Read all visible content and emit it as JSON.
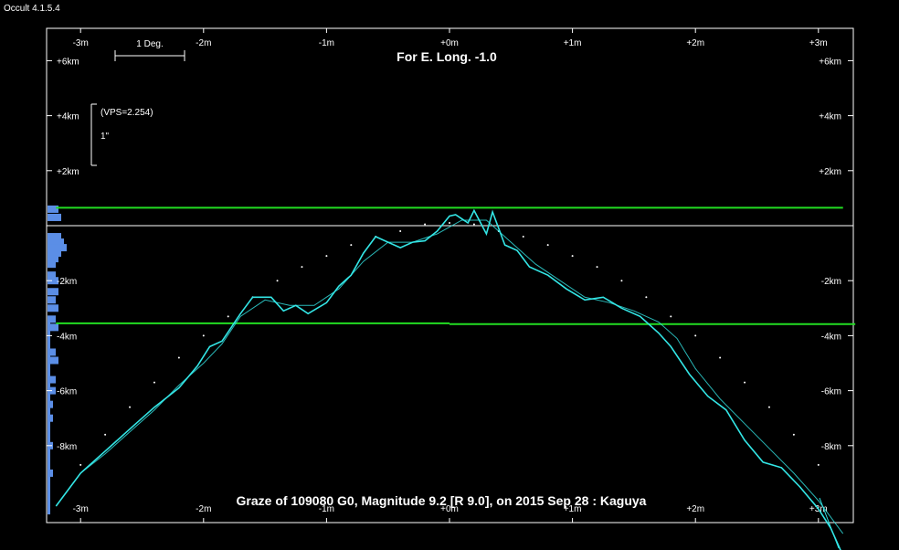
{
  "app_label": "Occult 4.1.5.4",
  "chart_data": {
    "type": "line",
    "title": "For E. Long. -1.0",
    "caption": "Graze of  109080 G0,  Magnitude 9.2 [R 9.0],  on 2015 Sep 28  :  Kaguya",
    "scale_bar_label": "1 Deg.",
    "vps_label": "(VPS=2.254)",
    "vertical_scale_label": "1\"",
    "x_range_min": [
      -3.3,
      3.3
    ],
    "y_range_km": [
      -10.5,
      6.7
    ],
    "x_ticks": [
      -3,
      -2,
      -1,
      0,
      1,
      2,
      3
    ],
    "x_tick_labels_top": [
      "-3m",
      "-2m",
      "-1m",
      "+0m",
      "+1m",
      "+2m",
      "+3m"
    ],
    "x_tick_labels_bottom": [
      "-3m",
      "-2m",
      "-1m",
      "+0m",
      "+1m",
      "+2m",
      "+3m"
    ],
    "y_ticks_km": [
      6,
      4,
      2,
      -2,
      -4,
      -6,
      -8
    ],
    "y_tick_labels": [
      "+6km",
      "+4km",
      "+2km",
      "-2km",
      "-4km",
      "-6km",
      "-8km"
    ],
    "colors": {
      "background": "#000000",
      "frame": "#ffffff",
      "limit_lines": "#22dd22",
      "profile": "#33e6e6",
      "smooth_profile": "#33e6e6",
      "histogram": "#5b8ee6",
      "text": "#ffffff"
    },
    "limit_lines_km": [
      {
        "x_start": -3.2,
        "x_end": 3.2,
        "y": 0.65
      },
      {
        "x_start": -3.2,
        "x_end": 0.0,
        "y": -3.55
      },
      {
        "x_start": 0.0,
        "x_end": 3.3,
        "y": -3.58
      }
    ],
    "profile": {
      "x": [
        -3.2,
        -3.0,
        -2.8,
        -2.6,
        -2.4,
        -2.2,
        -2.05,
        -1.95,
        -1.85,
        -1.7,
        -1.6,
        -1.45,
        -1.35,
        -1.25,
        -1.15,
        -1.0,
        -0.9,
        -0.8,
        -0.7,
        -0.6,
        -0.5,
        -0.4,
        -0.3,
        -0.2,
        -0.1,
        0.0,
        0.05,
        0.15,
        0.2,
        0.3,
        0.35,
        0.45,
        0.55,
        0.65,
        0.8,
        0.95,
        1.1,
        1.25,
        1.4,
        1.55,
        1.7,
        1.8,
        1.95,
        2.1,
        2.25,
        2.4,
        2.55,
        2.7,
        2.85,
        3.0,
        3.1,
        3.2
      ],
      "y": [
        -10.2,
        -9.0,
        -8.2,
        -7.4,
        -6.6,
        -5.9,
        -5.1,
        -4.4,
        -4.2,
        -3.2,
        -2.6,
        -2.6,
        -3.1,
        -2.9,
        -3.2,
        -2.8,
        -2.2,
        -1.8,
        -1.0,
        -0.4,
        -0.6,
        -0.8,
        -0.6,
        -0.55,
        -0.2,
        0.35,
        0.4,
        0.1,
        0.55,
        -0.3,
        0.5,
        -0.7,
        -0.9,
        -1.5,
        -1.8,
        -2.3,
        -2.7,
        -2.6,
        -3.0,
        -3.3,
        -3.9,
        -4.4,
        -5.4,
        -6.2,
        -6.7,
        -7.8,
        -8.6,
        -8.8,
        -9.5,
        -10.3,
        -11.0,
        -12.0
      ]
    },
    "smooth_profile": {
      "x": [
        -3.2,
        -3.0,
        -2.8,
        -2.6,
        -2.4,
        -2.2,
        -2.0,
        -1.85,
        -1.7,
        -1.5,
        -1.3,
        -1.1,
        -0.9,
        -0.7,
        -0.5,
        -0.3,
        -0.1,
        0.1,
        0.3,
        0.5,
        0.7,
        0.9,
        1.1,
        1.3,
        1.5,
        1.7,
        1.85,
        2.0,
        2.2,
        2.4,
        2.6,
        2.8,
        3.0,
        3.2
      ],
      "y": [
        -10.2,
        -9.0,
        -8.3,
        -7.5,
        -6.7,
        -5.8,
        -5.0,
        -4.3,
        -3.3,
        -2.7,
        -2.9,
        -2.9,
        -2.3,
        -1.3,
        -0.6,
        -0.6,
        -0.3,
        0.2,
        0.2,
        -0.6,
        -1.4,
        -2.0,
        -2.6,
        -2.8,
        -3.1,
        -3.5,
        -4.1,
        -5.2,
        -6.3,
        -7.2,
        -8.1,
        -9.0,
        -10.0,
        -11.2
      ]
    },
    "mean_limb_dots": {
      "x": [
        -3.0,
        -2.8,
        -2.6,
        -2.4,
        -2.2,
        -2.0,
        -1.8,
        -1.6,
        -1.4,
        -1.2,
        -1.0,
        -0.8,
        -0.6,
        -0.4,
        -0.2,
        0.0,
        0.2,
        0.4,
        0.6,
        0.8,
        1.0,
        1.2,
        1.4,
        1.6,
        1.8,
        2.0,
        2.2,
        2.4,
        2.6,
        2.8,
        3.0
      ],
      "y": [
        -8.7,
        -7.6,
        -6.6,
        -5.7,
        -4.8,
        -4.0,
        -3.3,
        -2.6,
        -2.0,
        -1.5,
        -1.1,
        -0.7,
        -0.4,
        -0.2,
        0.05,
        0.1,
        0.05,
        -0.2,
        -0.4,
        -0.7,
        -1.1,
        -1.5,
        -2.0,
        -2.6,
        -3.3,
        -4.0,
        -4.8,
        -5.7,
        -6.6,
        -7.6,
        -8.7
      ]
    },
    "histogram": {
      "y_km": [
        0.6,
        0.3,
        -0.4,
        -0.6,
        -0.8,
        -1.0,
        -1.2,
        -1.4,
        -1.8,
        -2.0,
        -2.4,
        -2.7,
        -3.0,
        -3.4,
        -3.7,
        -4.6,
        -4.9,
        -5.6,
        -6.0,
        -6.5,
        -7.0,
        -8.0,
        -9.0
      ],
      "counts": [
        4,
        5,
        5,
        6,
        7,
        5,
        4,
        3,
        3,
        4,
        4,
        3,
        4,
        3,
        4,
        3,
        4,
        3,
        3,
        2,
        2,
        2,
        2
      ]
    }
  }
}
